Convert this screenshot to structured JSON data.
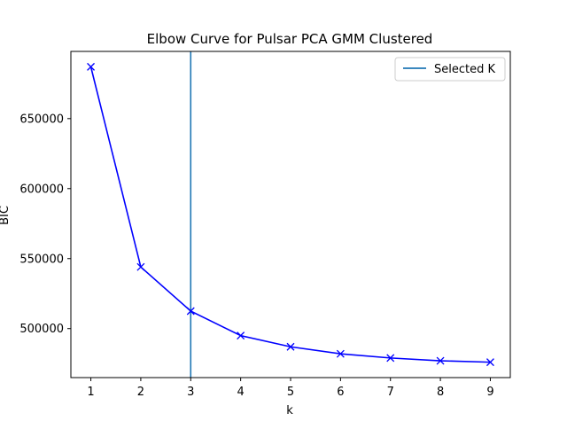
{
  "chart_data": {
    "type": "line",
    "title": "Elbow Curve for Pulsar PCA GMM Clustered",
    "xlabel": "k",
    "ylabel": "BIC",
    "x": [
      1,
      2,
      3,
      4,
      5,
      6,
      7,
      8,
      9
    ],
    "series": [
      {
        "values": [
          687000,
          544000,
          512500,
          495000,
          487000,
          482000,
          479000,
          477000,
          476000
        ],
        "color": "#0000ff",
        "marker": "x"
      }
    ],
    "selected_k": {
      "value": 3,
      "label": "Selected K",
      "color": "#1f77b4"
    },
    "xlim": [
      0.6,
      9.4
    ],
    "ylim": [
      465000,
      698000
    ],
    "xticks": [
      1,
      2,
      3,
      4,
      5,
      6,
      7,
      8,
      9
    ],
    "yticks": [
      500000,
      550000,
      600000,
      650000
    ],
    "grid": false,
    "legend_position": "top-right"
  }
}
